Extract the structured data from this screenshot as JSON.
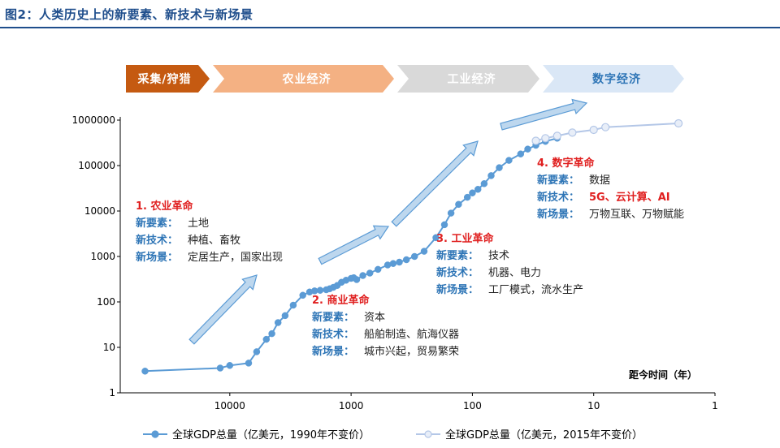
{
  "figure": {
    "title": "图2：人类历史上的新要素、新技术与新场景"
  },
  "colors": {
    "title": "#1f4e8c",
    "series1": "#5b9bd5",
    "series2": "#b4c7e7",
    "arrow_fill": "#bdd7ee",
    "arrow_stroke": "#5b9bd5",
    "stage1": "#c55a11",
    "stage2": "#f4b183",
    "stage3": "#d9d9d9",
    "stage4": "#dae7f6",
    "red": "#e02020",
    "blue": "#2e75b6"
  },
  "stages": [
    {
      "label": "采集/狩猎",
      "color": "#c55a11",
      "text_color": "#ffffff"
    },
    {
      "label": "农业经济",
      "color": "#f4b183",
      "text_color": "#ffffff"
    },
    {
      "label": "工业经济",
      "color": "#d9d9d9",
      "text_color": "#ffffff"
    },
    {
      "label": "数字经济",
      "color": "#dae7f6",
      "text_color": "#2e75b6"
    }
  ],
  "chart_data": {
    "type": "line",
    "title": "",
    "xlabel": "距今时间（年）",
    "ylabel": "",
    "x_scale": "log-reversed",
    "y_scale": "log",
    "xlim": [
      80000,
      1
    ],
    "ylim": [
      1,
      1000000
    ],
    "x_ticks": [
      {
        "value": 10000,
        "label": "10000"
      },
      {
        "value": 1000,
        "label": "1000"
      },
      {
        "value": 100,
        "label": "100"
      },
      {
        "value": 10,
        "label": "10"
      },
      {
        "value": 1,
        "label": "1"
      }
    ],
    "y_ticks": [
      {
        "value": 1,
        "label": "1"
      },
      {
        "value": 10,
        "label": "10"
      },
      {
        "value": 100,
        "label": "100"
      },
      {
        "value": 1000,
        "label": "1000"
      },
      {
        "value": 10000,
        "label": "10000"
      },
      {
        "value": 100000,
        "label": "100000"
      },
      {
        "value": 1000000,
        "label": "1000000"
      }
    ],
    "series": [
      {
        "name": "全球GDP总量（亿美元，1990年不变价）",
        "x": [
          50000,
          12000,
          10000,
          7000,
          6000,
          5000,
          4500,
          4000,
          3500,
          3000,
          2500,
          2200,
          2000,
          1800,
          1600,
          1500,
          1400,
          1300,
          1200,
          1100,
          1000,
          950,
          900,
          800,
          700,
          600,
          500,
          450,
          400,
          350,
          300,
          250,
          200,
          170,
          150,
          130,
          110,
          100,
          90,
          80,
          70,
          60,
          50,
          40,
          35,
          30,
          25,
          20
        ],
        "y": [
          3,
          3.5,
          4,
          4.5,
          8,
          15,
          20,
          35,
          50,
          85,
          140,
          165,
          175,
          180,
          185,
          195,
          210,
          230,
          270,
          300,
          330,
          340,
          310,
          380,
          430,
          520,
          650,
          700,
          750,
          850,
          1000,
          1300,
          2600,
          5000,
          9000,
          14000,
          20000,
          25000,
          30000,
          40000,
          60000,
          90000,
          130000,
          180000,
          230000,
          280000,
          340000,
          400000
        ]
      },
      {
        "name": "全球GDP总量（亿美元，2015年不变价）",
        "x": [
          30,
          25,
          20,
          15,
          10,
          8,
          2
        ],
        "y": [
          350000,
          400000,
          450000,
          530000,
          610000,
          700000,
          850000
        ]
      }
    ],
    "annotations": [
      {
        "title": "1. 农业革命",
        "rows": [
          {
            "key": "新要素：",
            "value": "土地"
          },
          {
            "key": "新技术：",
            "value": "种植、畜牧"
          },
          {
            "key": "新场景：",
            "value": "定居生产，国家出现"
          }
        ]
      },
      {
        "title": "2. 商业革命",
        "rows": [
          {
            "key": "新要素：",
            "value": "资本"
          },
          {
            "key": "新技术：",
            "value": "船舶制造、航海仪器"
          },
          {
            "key": "新场景：",
            "value": "城市兴起，贸易繁荣"
          }
        ]
      },
      {
        "title": "3. 工业革命",
        "rows": [
          {
            "key": "新要素：",
            "value": "技术"
          },
          {
            "key": "新技术：",
            "value": "机器、电力"
          },
          {
            "key": "新场景：",
            "value": "工厂模式，流水生产"
          }
        ]
      },
      {
        "title": "4. 数字革命",
        "rows": [
          {
            "key": "新要素：",
            "value": "数据"
          },
          {
            "key": "新技术：",
            "value": "5G、云计算、AI",
            "red": true
          },
          {
            "key": "新场景：",
            "value": "万物互联、万物赋能"
          }
        ]
      }
    ],
    "legend": {
      "position": "bottom"
    }
  }
}
